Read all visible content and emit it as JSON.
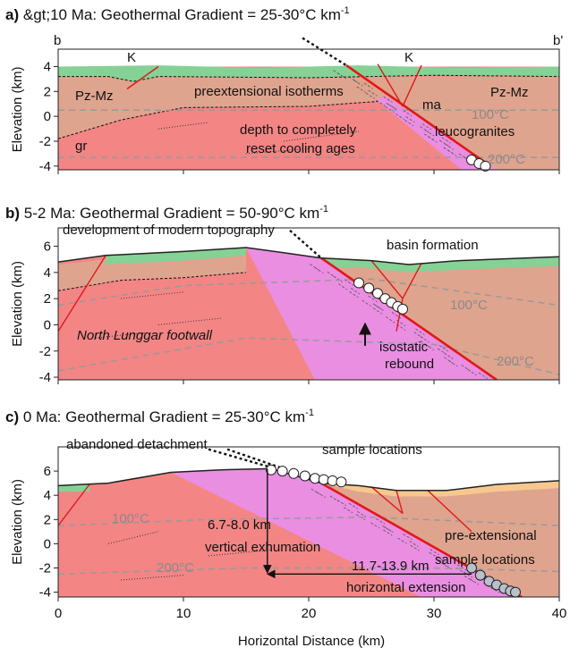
{
  "panels": [
    {
      "label": "a)",
      "title": "&gt;10 Ma: Geothermal Gradient = 25-30°C km",
      "title_superscript": "-1",
      "y_label": "Elevation (km)",
      "ylim": [
        -4.3,
        5.4
      ],
      "yticks": [
        4,
        2,
        0,
        -2,
        -4
      ],
      "annotations": [
        "b",
        "b'",
        "K",
        "K",
        "Pz-Mz",
        "Pz-Mz",
        "preextensional isotherms",
        "ma",
        "100°C",
        "depth to completely",
        "reset cooling ages",
        "leucogranites",
        "gr",
        "200°C"
      ]
    },
    {
      "label": "b)",
      "title": "5-2 Ma: Geothermal Gradient = 50-90°C km",
      "title_superscript": "-1",
      "y_label": "Elevation (km)",
      "ylim": [
        -4.2,
        7.4
      ],
      "yticks": [
        6,
        4,
        2,
        0,
        -2,
        -4
      ],
      "annotations": [
        "development of modern topography",
        "basin formation",
        "100°C",
        "North Lunggar footwall",
        "isostatic",
        "rebound",
        "200°C"
      ]
    },
    {
      "label": "c)",
      "title": "0 Ma: Geothermal Gradient = 25-30°C km",
      "title_superscript": "-1",
      "y_label": "Elevation (km)",
      "ylim": [
        -4.4,
        8
      ],
      "yticks": [
        6,
        4,
        2,
        0,
        -2,
        -4
      ],
      "annotations": [
        "abandoned detachment",
        "sample locations",
        "100°C",
        "6.7-8.0 km",
        "vertical exhumation",
        "pre-extensional",
        "sample locations",
        "200°C",
        "11.7-13.9 km",
        "horizontal extension"
      ]
    }
  ],
  "x_axis": {
    "label": "Horizontal Distance (km)",
    "xlim": [
      0,
      40
    ],
    "ticks": [
      0,
      10,
      20,
      30,
      40
    ]
  }
}
